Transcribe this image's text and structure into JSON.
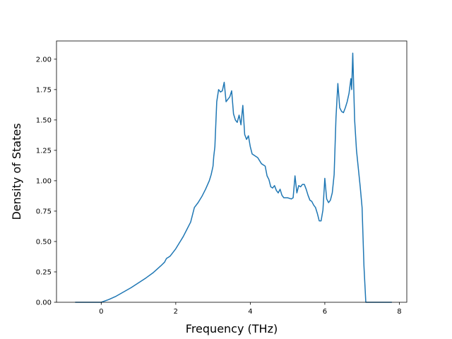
{
  "chart_data": {
    "type": "line",
    "title": "",
    "xlabel": "Frequency (THz)",
    "ylabel": "Density of States",
    "xlim": [
      -1.2,
      8.2
    ],
    "ylim": [
      0.0,
      2.15
    ],
    "xticks": [
      0,
      2,
      4,
      6,
      8
    ],
    "xtick_labels": [
      "0",
      "2",
      "4",
      "6",
      "8"
    ],
    "yticks": [
      0.0,
      0.25,
      0.5,
      0.75,
      1.0,
      1.25,
      1.5,
      1.75,
      2.0
    ],
    "ytick_labels": [
      "0.00",
      "0.25",
      "0.50",
      "0.75",
      "1.00",
      "1.25",
      "1.50",
      "1.75",
      "2.00"
    ],
    "grid": false,
    "legend": "none",
    "series": [
      {
        "color": "#1f77b4",
        "x": [
          -0.7,
          -0.3,
          0.0,
          0.2,
          0.4,
          0.6,
          0.8,
          1.0,
          1.2,
          1.4,
          1.6,
          1.7,
          1.75,
          1.8,
          1.85,
          1.9,
          2.0,
          2.1,
          2.2,
          2.3,
          2.35,
          2.4,
          2.5,
          2.6,
          2.7,
          2.8,
          2.9,
          2.95,
          3.0,
          3.02,
          3.05,
          3.1,
          3.15,
          3.2,
          3.25,
          3.3,
          3.35,
          3.4,
          3.45,
          3.5,
          3.55,
          3.6,
          3.65,
          3.7,
          3.75,
          3.8,
          3.85,
          3.9,
          3.95,
          4.0,
          4.05,
          4.1,
          4.15,
          4.2,
          4.3,
          4.35,
          4.4,
          4.45,
          4.5,
          4.55,
          4.6,
          4.65,
          4.7,
          4.75,
          4.8,
          4.85,
          4.9,
          5.0,
          5.1,
          5.15,
          5.2,
          5.25,
          5.3,
          5.35,
          5.4,
          5.45,
          5.5,
          5.55,
          5.6,
          5.65,
          5.7,
          5.75,
          5.8,
          5.85,
          5.9,
          5.95,
          6.0,
          6.05,
          6.1,
          6.15,
          6.2,
          6.25,
          6.3,
          6.35,
          6.4,
          6.45,
          6.5,
          6.55,
          6.6,
          6.65,
          6.7,
          6.72,
          6.75,
          6.8,
          6.85,
          6.9,
          6.95,
          7.0,
          7.05,
          7.1,
          7.2,
          7.5,
          7.8
        ],
        "values": [
          0.0,
          0.0,
          0.0,
          0.022,
          0.05,
          0.085,
          0.12,
          0.16,
          0.2,
          0.245,
          0.3,
          0.33,
          0.36,
          0.37,
          0.38,
          0.4,
          0.44,
          0.49,
          0.54,
          0.6,
          0.63,
          0.66,
          0.78,
          0.82,
          0.87,
          0.93,
          1.0,
          1.05,
          1.12,
          1.2,
          1.28,
          1.65,
          1.75,
          1.73,
          1.74,
          1.81,
          1.65,
          1.67,
          1.69,
          1.74,
          1.55,
          1.5,
          1.48,
          1.54,
          1.46,
          1.62,
          1.38,
          1.34,
          1.37,
          1.28,
          1.22,
          1.21,
          1.2,
          1.19,
          1.14,
          1.13,
          1.12,
          1.04,
          1.01,
          0.95,
          0.94,
          0.96,
          0.92,
          0.9,
          0.93,
          0.88,
          0.86,
          0.86,
          0.85,
          0.86,
          1.04,
          0.9,
          0.96,
          0.95,
          0.97,
          0.97,
          0.93,
          0.88,
          0.84,
          0.83,
          0.8,
          0.78,
          0.73,
          0.67,
          0.67,
          0.76,
          1.02,
          0.85,
          0.82,
          0.84,
          0.9,
          1.05,
          1.52,
          1.8,
          1.6,
          1.57,
          1.56,
          1.6,
          1.65,
          1.72,
          1.84,
          1.75,
          2.05,
          1.5,
          1.25,
          1.1,
          0.95,
          0.78,
          0.3,
          0.0,
          0.0,
          0.0,
          0.0
        ]
      }
    ]
  }
}
